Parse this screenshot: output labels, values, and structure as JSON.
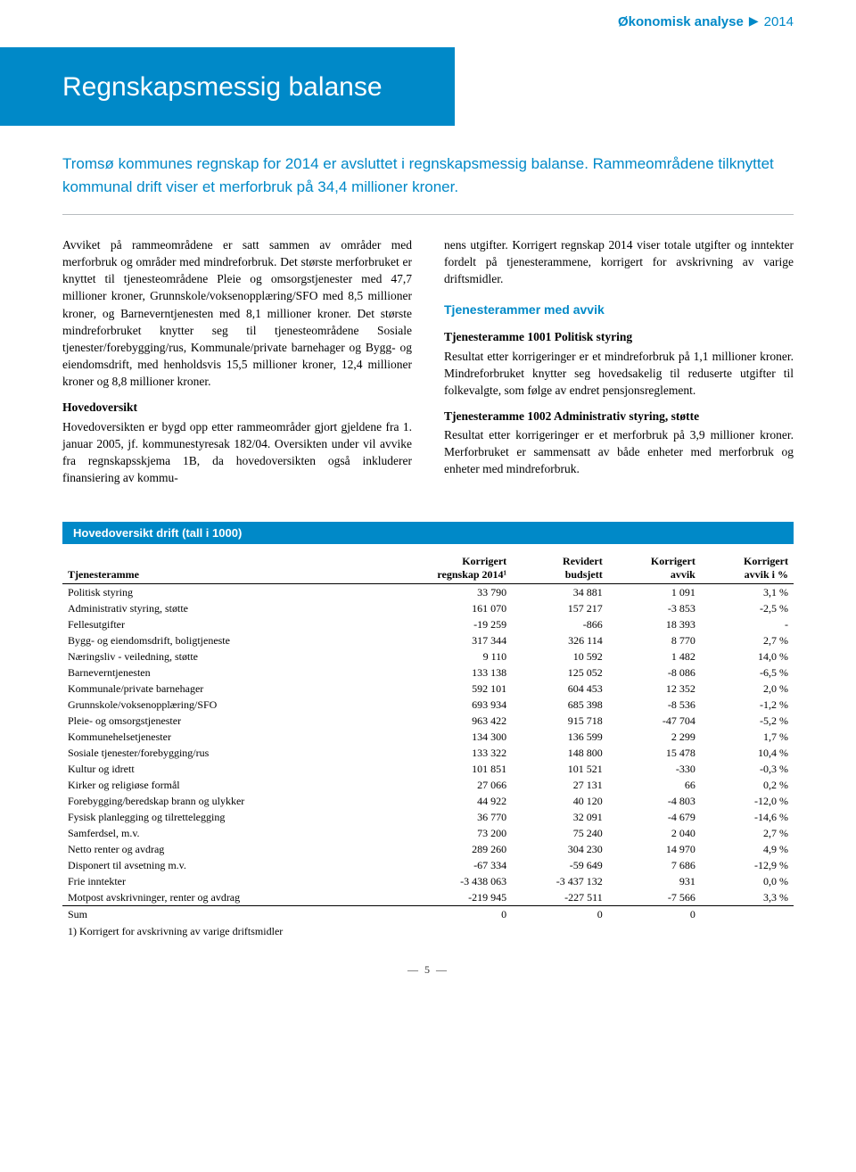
{
  "header": {
    "category": "Økonomisk analyse",
    "year": "2014"
  },
  "title_box": "Regnskapsmessig balanse",
  "lead": "Tromsø kommunes regnskap for 2014 er avsluttet i regnskapsmessig balanse. Rammeområdene tilknyttet kommunal drift viser et merforbruk på 34,4 millioner kroner.",
  "body": {
    "left": {
      "p1": "Avviket på rammeområdene er satt sammen av områder med merforbruk og områder med mindreforbruk. Det største merforbruket er knyttet til tjenesteområdene Pleie og omsorgstjenester med 47,7 millioner kroner, Grunnskole/voksenopplæring/SFO med 8,5 millioner kroner, og Barneverntjenesten med 8,1 millioner kroner. Det største mindreforbruket knytter seg til tjenesteområdene Sosiale tjenester/forebygging/rus, Kommunale/private barnehager og Bygg- og eiendomsdrift, med henholdsvis 15,5 millioner kroner, 12,4 millioner kroner og 8,8 millioner kroner.",
      "h1": "Hovedoversikt",
      "p2": "Hovedoversikten er bygd opp etter rammeområder gjort gjeldene fra 1. januar 2005, jf. kommunestyresak 182/04. Oversikten under vil avvike fra regnskapsskjema 1B, da hovedoversikten også inkluderer finansiering av kommu-"
    },
    "right": {
      "p1": "nens utgifter. Korrigert regnskap 2014 viser totale utgifter og inntekter fordelt på tjenesterammene, korrigert for avskrivning av varige driftsmidler.",
      "section": "Tjenesterammer med avvik",
      "h1": "Tjenesteramme 1001 Politisk styring",
      "p2": "Resultat etter korrigeringer er et mindreforbruk på 1,1 millioner kroner. Mindreforbruket knytter seg hovedsakelig til reduserte utgifter til folkevalgte, som følge av endret pensjonsreglement.",
      "h2": "Tjenesteramme 1002 Administrativ styring, støtte",
      "p3": "Resultat etter korrigeringer er et merforbruk på 3,9 millioner kroner. Merforbruket er sammensatt av både enheter med merforbruk og enheter med mindreforbruk."
    }
  },
  "table": {
    "title": "Hovedoversikt drift (tall i 1000)",
    "headers": {
      "c1": "Tjenesteramme",
      "c2a": "Korrigert",
      "c2b": "regnskap 2014¹",
      "c3a": "Revidert",
      "c3b": "budsjett",
      "c4a": "Korrigert",
      "c4b": "avvik",
      "c5a": "Korrigert",
      "c5b": "avvik i %"
    },
    "rows": [
      [
        "Politisk styring",
        "33 790",
        "34 881",
        "1 091",
        "3,1 %"
      ],
      [
        "Administrativ styring, støtte",
        "161 070",
        "157 217",
        "-3 853",
        "-2,5 %"
      ],
      [
        "Fellesutgifter",
        "-19 259",
        "-866",
        "18 393",
        "-"
      ],
      [
        "Bygg- og eiendomsdrift, boligtjeneste",
        "317 344",
        "326 114",
        "8 770",
        "2,7 %"
      ],
      [
        "Næringsliv - veiledning, støtte",
        "9 110",
        "10 592",
        "1 482",
        "14,0 %"
      ],
      [
        "Barneverntjenesten",
        "133 138",
        "125 052",
        "-8 086",
        "-6,5 %"
      ],
      [
        "Kommunale/private barnehager",
        "592 101",
        "604 453",
        "12 352",
        "2,0 %"
      ],
      [
        "Grunnskole/voksenopplæring/SFO",
        "693 934",
        "685 398",
        "-8 536",
        "-1,2 %"
      ],
      [
        "Pleie- og omsorgstjenester",
        "963 422",
        "915 718",
        "-47 704",
        "-5,2 %"
      ],
      [
        "Kommunehelsetjenester",
        "134 300",
        "136 599",
        "2 299",
        "1,7 %"
      ],
      [
        "Sosiale tjenester/forebygging/rus",
        "133 322",
        "148 800",
        "15 478",
        "10,4 %"
      ],
      [
        "Kultur og idrett",
        "101 851",
        "101 521",
        "-330",
        "-0,3 %"
      ],
      [
        "Kirker og religiøse formål",
        "27 066",
        "27 131",
        "66",
        "0,2 %"
      ],
      [
        "Forebygging/beredskap brann og ulykker",
        "44 922",
        "40 120",
        "-4 803",
        "-12,0 %"
      ],
      [
        "Fysisk planlegging og tilrettelegging",
        "36 770",
        "32 091",
        "-4 679",
        "-14,6 %"
      ],
      [
        "Samferdsel, m.v.",
        "73 200",
        "75 240",
        "2 040",
        "2,7 %"
      ],
      [
        "Netto renter og avdrag",
        "289 260",
        "304 230",
        "14 970",
        "4,9 %"
      ],
      [
        "Disponert til avsetning m.v.",
        "-67 334",
        "-59 649",
        "7 686",
        "-12,9 %"
      ],
      [
        "Frie inntekter",
        "-3 438 063",
        "-3 437 132",
        "931",
        "0,0 %"
      ],
      [
        "Motpost avskrivninger, renter og avdrag",
        "-219 945",
        "-227 511",
        "-7 566",
        "3,3 %"
      ]
    ],
    "sum": [
      "Sum",
      "0",
      "0",
      "0",
      ""
    ],
    "footnote": "1) Korrigert for avskrivning av varige driftsmidler"
  },
  "page_number": "— 5 —"
}
